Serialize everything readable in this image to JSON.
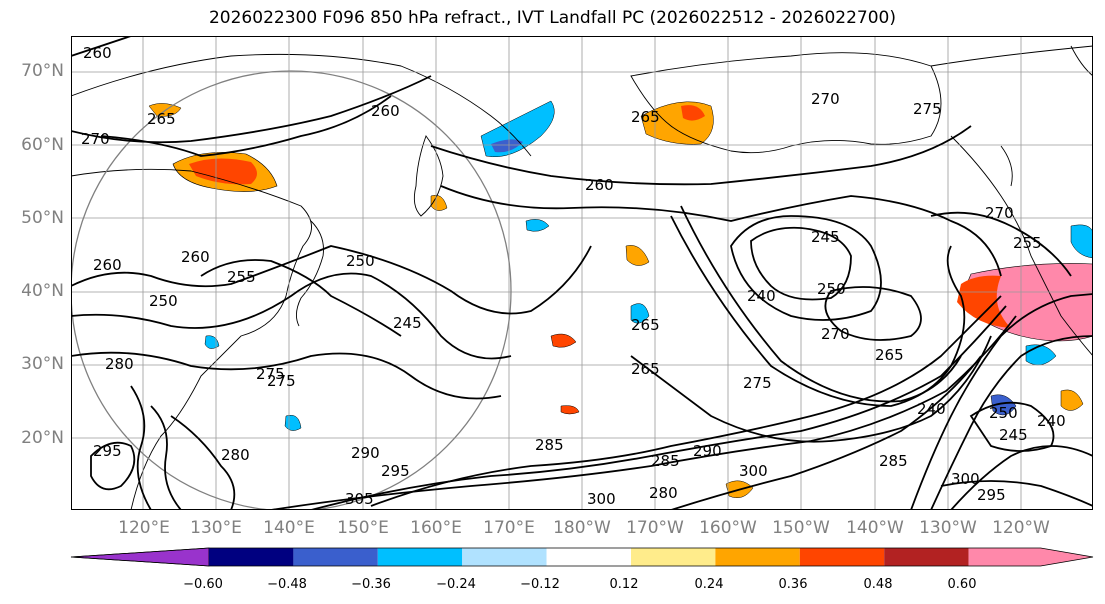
{
  "title": "2026022300 F096 850 hPa refract., IVT Landfall PC (2026022512 - 2026022700)",
  "lat_labels": [
    "70°N",
    "60°N",
    "50°N",
    "40°N",
    "30°N",
    "20°N"
  ],
  "lon_labels": [
    "120°E",
    "130°E",
    "140°E",
    "150°E",
    "160°E",
    "170°E",
    "180°W",
    "170°W",
    "160°W",
    "150°W",
    "140°W",
    "130°W",
    "120°W"
  ],
  "colorbar": {
    "ticks": [
      "−0.60",
      "−0.48",
      "−0.36",
      "−0.24",
      "−0.12",
      "0.12",
      "0.24",
      "0.36",
      "0.48",
      "0.60"
    ],
    "colors": [
      "#9933cc",
      "#000080",
      "#3a5fcd",
      "#00bfff",
      "#b0e2ff",
      "#ffffff",
      "#ffec8b",
      "#ffa500",
      "#ff4500",
      "#b22222",
      "#ff88aa"
    ]
  },
  "contour_labels": [
    "260",
    "265",
    "270",
    "260",
    "265",
    "270",
    "275",
    "260",
    "260",
    "250",
    "245",
    "245",
    "250",
    "240",
    "270",
    "265",
    "255",
    "260",
    "275",
    "280",
    "265",
    "285",
    "275",
    "280",
    "290",
    "285",
    "290",
    "295",
    "300",
    "305",
    "300",
    "280",
    "295",
    "275",
    "240",
    "250",
    "245",
    "240",
    "300",
    "295",
    "265",
    "270",
    "255",
    "250",
    "285"
  ],
  "map": {
    "coastline_color": "#000000",
    "contour_color": "#000000",
    "grid_color": "#808080"
  }
}
